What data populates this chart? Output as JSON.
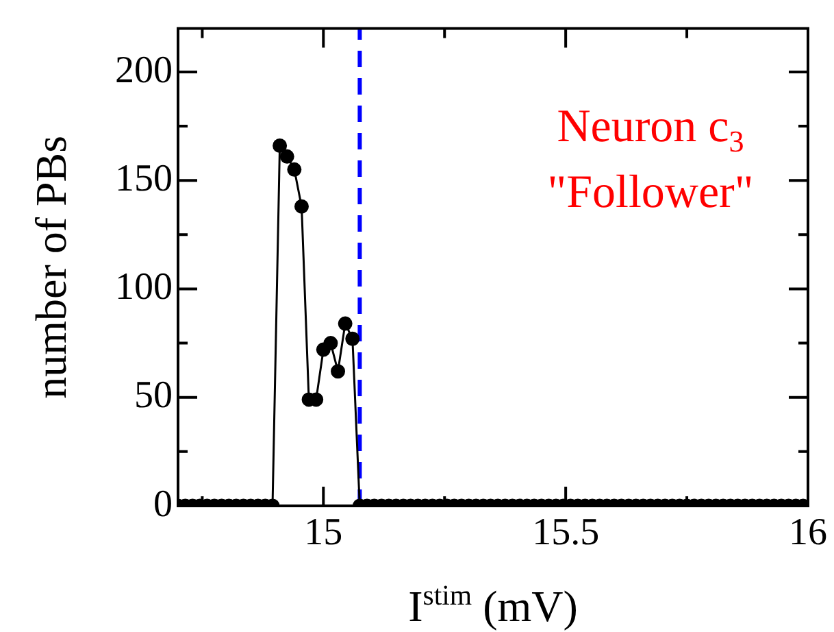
{
  "chart_data": {
    "type": "line",
    "xlabel": "I$^{stim}$ (mV)",
    "ylabel": "number of PBs",
    "annotations": [
      "Neuron c$_{3}$",
      "\"Follower\""
    ],
    "xlim": [
      14.7,
      16
    ],
    "xticks": [
      {
        "value": 14.75,
        "label": null
      },
      15,
      {
        "value": 15.25,
        "label": null
      },
      15.5,
      {
        "value": 15.75,
        "label": null
      },
      16
    ],
    "ylim": [
      0,
      220
    ],
    "yticks": [
      0,
      {
        "value": 25,
        "label": null
      },
      50,
      {
        "value": 75,
        "label": null
      },
      100,
      {
        "value": 125,
        "label": null
      },
      150,
      {
        "value": 175,
        "label": null
      },
      200
    ],
    "marker": "circle",
    "grid": false,
    "legend": false,
    "ref_lines": [
      {
        "axis": "x",
        "value": 15.075,
        "color": "#0000ff",
        "line_style": "dashed"
      }
    ],
    "series": [
      {
        "color": "#000000",
        "x": [
          14.7,
          14.715,
          14.73,
          14.745,
          14.76,
          14.775,
          14.79,
          14.805,
          14.82,
          14.835,
          14.85,
          14.865,
          14.88,
          14.895,
          14.91,
          14.925,
          14.94,
          14.955,
          14.97,
          14.985,
          15.0,
          15.015,
          15.03,
          15.045,
          15.06,
          15.075,
          15.09,
          15.105,
          15.12,
          15.135,
          15.15,
          15.165,
          15.18,
          15.195,
          15.21,
          15.225,
          15.24,
          15.255,
          15.27,
          15.285,
          15.3,
          15.315,
          15.33,
          15.345,
          15.36,
          15.375,
          15.39,
          15.405,
          15.42,
          15.435,
          15.45,
          15.465,
          15.48,
          15.495,
          15.51,
          15.525,
          15.54,
          15.555,
          15.57,
          15.585,
          15.6,
          15.615,
          15.63,
          15.645,
          15.66,
          15.675,
          15.69,
          15.705,
          15.72,
          15.735,
          15.75,
          15.765,
          15.78,
          15.795,
          15.81,
          15.825,
          15.84,
          15.855,
          15.87,
          15.885,
          15.9,
          15.915,
          15.93,
          15.945,
          15.96,
          15.975,
          15.99
        ],
        "values": [
          0,
          0,
          0,
          0,
          0,
          0,
          0,
          0,
          0,
          0,
          0,
          0,
          0,
          0,
          166,
          161,
          155,
          138,
          49,
          49,
          72,
          75,
          62,
          84,
          77,
          0,
          0,
          0,
          0,
          0,
          0,
          0,
          0,
          0,
          0,
          0,
          0,
          0,
          0,
          0,
          0,
          0,
          0,
          0,
          0,
          0,
          0,
          0,
          0,
          0,
          0,
          0,
          0,
          0,
          0,
          0,
          0,
          0,
          0,
          0,
          0,
          0,
          0,
          0,
          0,
          0,
          0,
          0,
          0,
          0,
          0,
          0,
          0,
          0,
          0,
          0,
          0,
          0,
          0,
          0,
          0,
          0,
          0,
          0,
          0,
          0,
          0
        ]
      }
    ]
  }
}
